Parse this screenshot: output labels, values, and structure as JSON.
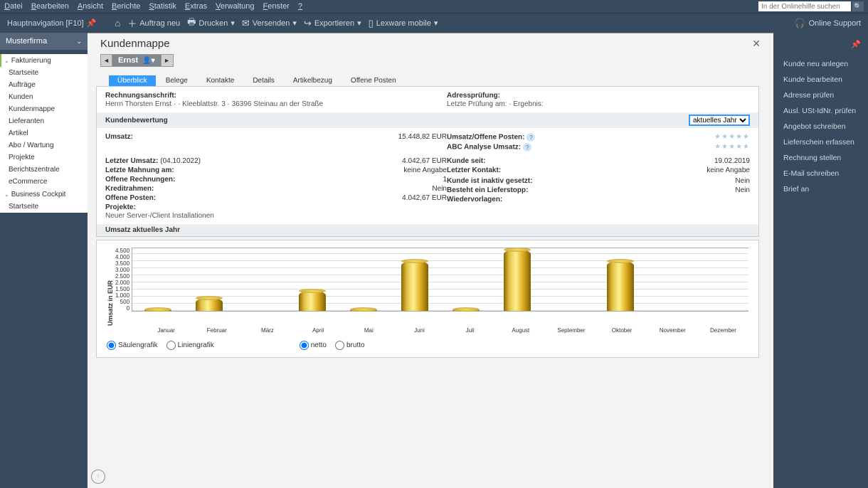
{
  "menubar": [
    "Datei",
    "Bearbeiten",
    "Ansicht",
    "Berichte",
    "Statistik",
    "Extras",
    "Verwaltung",
    "Fenster",
    "?"
  ],
  "search_placeholder": "In der Onlinehilfe suchen",
  "toolbar": {
    "nav_label": "Hauptnavigation [F10]",
    "auftrag_neu": "Auftrag neu",
    "drucken": "Drucken",
    "versenden": "Versenden",
    "exportieren": "Exportieren",
    "lexware": "Lexware mobile",
    "support": "Online Support"
  },
  "sidebar": {
    "company": "Musterfirma",
    "sections": [
      {
        "title": "Fakturierung",
        "items": [
          "Startseite",
          "Aufträge",
          "Kunden",
          "Kundenmappe",
          "Lieferanten",
          "Artikel",
          "Abo / Wartung",
          "Projekte",
          "Berichtszentrale",
          "eCommerce"
        ]
      },
      {
        "title": "Business Cockpit",
        "items": [
          "Startseite"
        ]
      }
    ]
  },
  "page": {
    "title": "Kundenmappe",
    "customer_name": "Ernst",
    "tabs": [
      "Überblick",
      "Belege",
      "Kontakte",
      "Details",
      "Artikelbezug",
      "Offene Posten"
    ],
    "active_tab": 0
  },
  "address": {
    "label": "Rechnungsanschrift:",
    "text": "Herrn Thorsten Ernst ·  · Kleeblattstr. 3 · 36396 Steinau an der Straße",
    "check_label": "Adressprüfung:",
    "check_text": "Letzte Prüfung am:  · Ergebnis:"
  },
  "rating": {
    "section": "Kundenbewertung",
    "year_options": [
      "aktuelles Jahr"
    ],
    "year_selected": "aktuelles Jahr",
    "rows_left": [
      {
        "label": "Umsatz:",
        "value": "15.448,82 EUR"
      }
    ],
    "rows_right": [
      {
        "label": "Umsatz/Offene Posten:",
        "stars": "★★★★★"
      },
      {
        "label": "ABC Analyse Umsatz:",
        "stars": "★★★★★"
      }
    ],
    "details_left": [
      {
        "label": "Letzter Umsatz:",
        "extra": "(04.10.2022)",
        "value": "4.042,67 EUR"
      },
      {
        "label": "Letzte Mahnung am:",
        "value": "keine Angabe"
      },
      {
        "label": "Offene Rechnungen:",
        "value": "1"
      },
      {
        "label": "Kreditrahmen:",
        "value": "Nein"
      },
      {
        "label": "Offene Posten:",
        "value": "4.042,67 EUR"
      },
      {
        "label": "Projekte:",
        "value": ""
      }
    ],
    "project_text": "Neuer Server-/Client Installationen",
    "details_right": [
      {
        "label": "Kunde seit:",
        "value": "19.02.2019"
      },
      {
        "label": "Letzter Kontakt:",
        "value": "keine Angabe"
      },
      {
        "label": "",
        "value": ""
      },
      {
        "label": "Kunde ist inaktiv gesetzt:",
        "value": "Nein"
      },
      {
        "label": "Besteht ein Lieferstopp:",
        "value": "Nein"
      },
      {
        "label": "Wiedervorlagen:",
        "value": ""
      }
    ]
  },
  "chart": {
    "section": "Umsatz aktuelles Jahr",
    "type": "bar",
    "y_label": "Umsatz in EUR",
    "y_max": 4500,
    "y_ticks": [
      "4.500",
      "4.000",
      "3.500",
      "3.000",
      "2.500",
      "2.000",
      "1.500",
      "1.000",
      "500",
      "0"
    ],
    "categories": [
      "Januar",
      "Februar",
      "März",
      "April",
      "Mai",
      "Juni",
      "Juli",
      "August",
      "September",
      "Oktober",
      "November",
      "Dezember"
    ],
    "values": [
      50,
      900,
      0,
      1400,
      50,
      3500,
      50,
      4300,
      0,
      3500,
      0,
      0
    ],
    "bar_color_gradient": [
      "#8a6500",
      "#e0c040",
      "#fff090",
      "#e0b020",
      "#806000"
    ],
    "grid_color": "#dcdcdc",
    "background_color": "#ffffff"
  },
  "chart_controls": {
    "type_options": [
      "Säulengrafik",
      "Liniengrafik"
    ],
    "type_selected": 0,
    "value_options": [
      "netto",
      "brutto"
    ],
    "value_selected": 0
  },
  "rightbar": [
    "Kunde neu anlegen",
    "Kunde bearbeiten",
    "Adresse prüfen",
    "Ausl. USt-IdNr. prüfen",
    "Angebot schreiben",
    "Lieferschein erfassen",
    "Rechnung stellen",
    "E-Mail schreiben",
    "Brief an"
  ]
}
